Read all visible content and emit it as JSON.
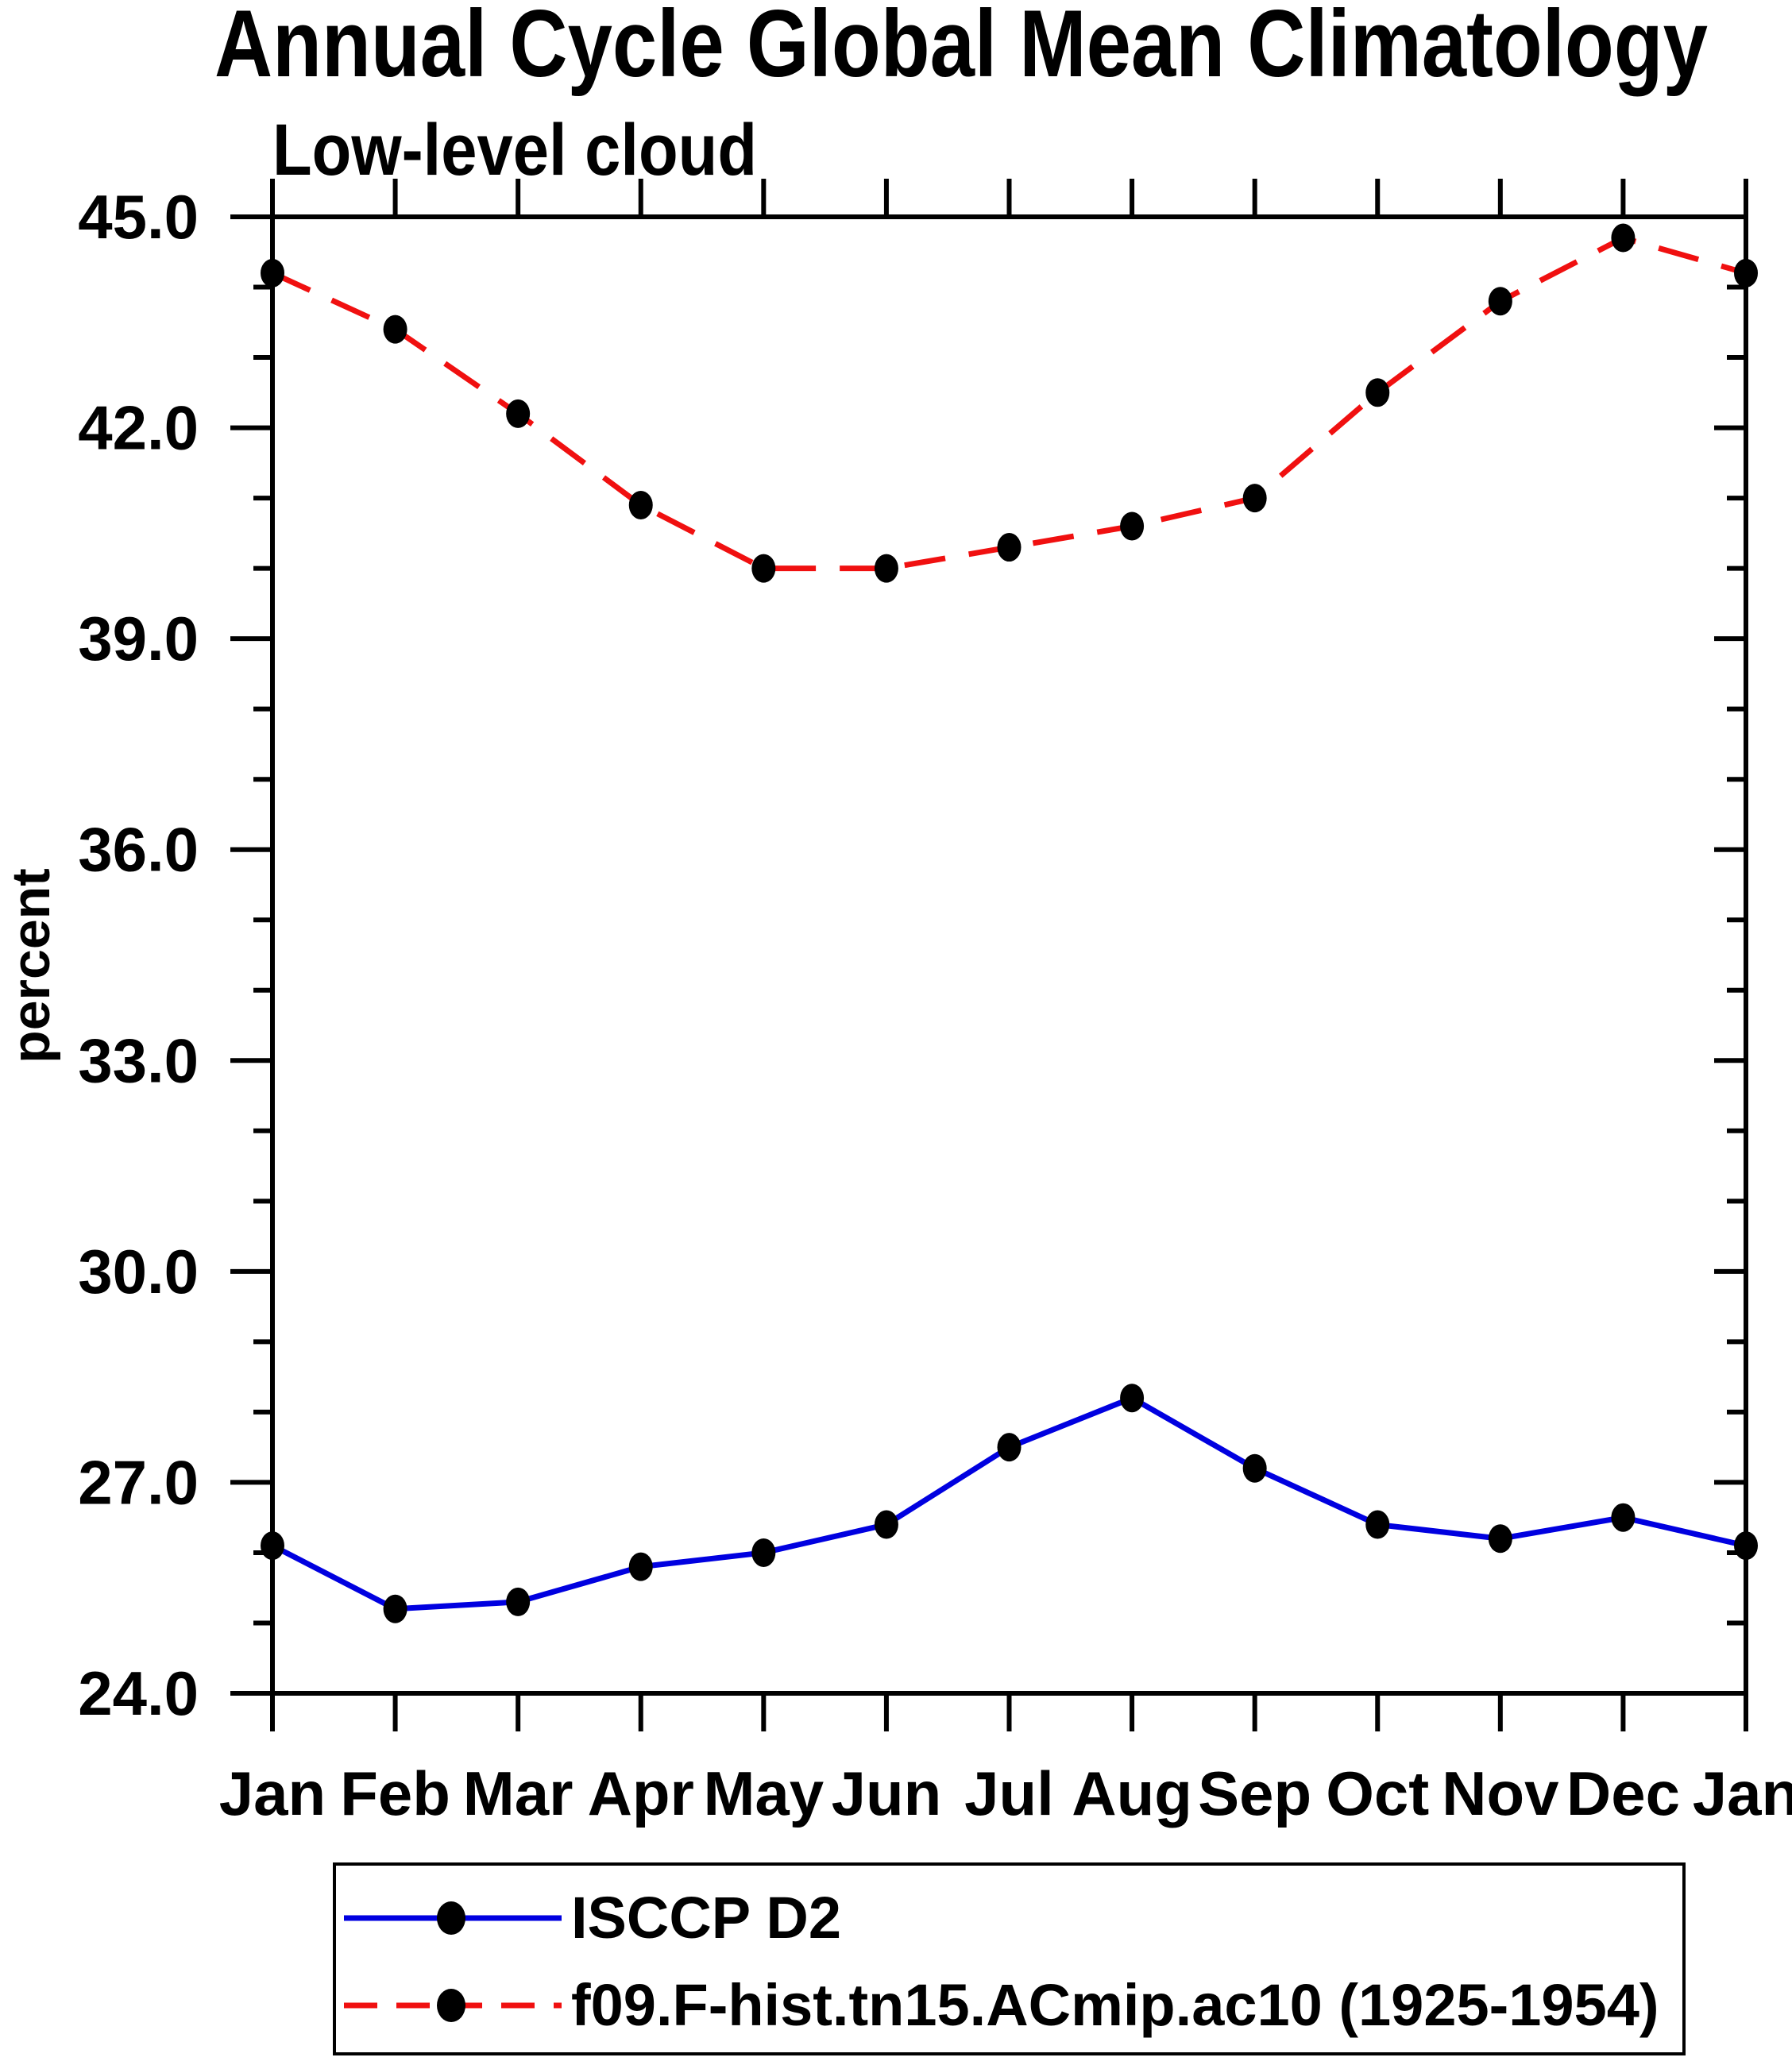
{
  "title": "Annual Cycle Global Mean Climatology",
  "subtitle": "Low-level cloud",
  "chart_data": {
    "type": "line",
    "x_categories": [
      "Jan",
      "Feb",
      "Mar",
      "Apr",
      "May",
      "Jun",
      "Jul",
      "Aug",
      "Sep",
      "Oct",
      "Nov",
      "Dec",
      "Jan"
    ],
    "xlabel": "",
    "ylabel": "percent",
    "ylim": [
      24.0,
      45.0
    ],
    "ytick_major_values": [
      24,
      27,
      30,
      33,
      36,
      39,
      42,
      45
    ],
    "ytick_labels": [
      "24.0",
      "27.0",
      "30.0",
      "33.0",
      "36.0",
      "39.0",
      "42.0",
      "45.0"
    ],
    "ytick_minor_interval": 1.0,
    "grid": false,
    "legend_position": "bottom",
    "marker": "filled-circle",
    "marker_color": "#000000",
    "series": [
      {
        "name": "ISCCP D2",
        "color": "#0000e0",
        "style": "solid",
        "values": [
          26.1,
          25.2,
          25.3,
          25.8,
          26.0,
          26.4,
          27.5,
          28.2,
          27.2,
          26.4,
          26.2,
          26.5,
          26.1
        ]
      },
      {
        "name": "f09.F-hist.tn15.ACmip.ac10 (1925-1954)",
        "color": "#f01010",
        "style": "dashed",
        "values": [
          44.2,
          43.4,
          42.2,
          40.9,
          40.0,
          40.0,
          40.3,
          40.6,
          41.0,
          42.5,
          43.8,
          44.7,
          44.2
        ]
      }
    ]
  },
  "colors": {
    "axis": "#000000",
    "text": "#000000",
    "background": "#ffffff",
    "series_blue": "#0000e0",
    "series_red": "#f01010",
    "marker": "#000000"
  }
}
